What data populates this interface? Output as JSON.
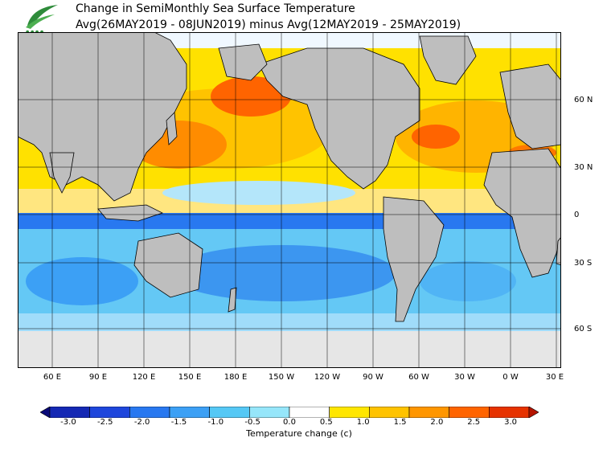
{
  "title": {
    "line1": "Change in SemiMonthly Sea Surface Temperature",
    "line2": "Avg(26MAY2019 - 08JUN2019) minus Avg(12MAY2019 - 25MAY2019)"
  },
  "axes": {
    "lat_labels": [
      "60 N",
      "30 N",
      "0",
      "30 S",
      "60 S"
    ],
    "lon_labels": [
      "60 E",
      "90 E",
      "120 E",
      "150 E",
      "180 E",
      "150 W",
      "120 W",
      "90 W",
      "60 W",
      "30 W",
      "0 W",
      "30 E"
    ]
  },
  "colorbar": {
    "ticks": [
      "-3.0",
      "-2.5",
      "-2.0",
      "-1.5",
      "-1.0",
      "-0.5",
      "0.0",
      "0.5",
      "1.0",
      "1.5",
      "2.0",
      "2.5",
      "3.0"
    ],
    "colors": [
      "#0a0a78",
      "#1428b4",
      "#1e46dc",
      "#2878f0",
      "#3ca0f5",
      "#55c8f5",
      "#96e6fa",
      "#ffffff",
      "#ffe600",
      "#ffc300",
      "#ff9600",
      "#ff6400",
      "#e63200",
      "#b41400"
    ],
    "title": "Temperature change  (c)"
  },
  "map": {
    "land_color": "#bebebe",
    "ice_color": "#e6e6e6",
    "grid_color": "#000000"
  }
}
